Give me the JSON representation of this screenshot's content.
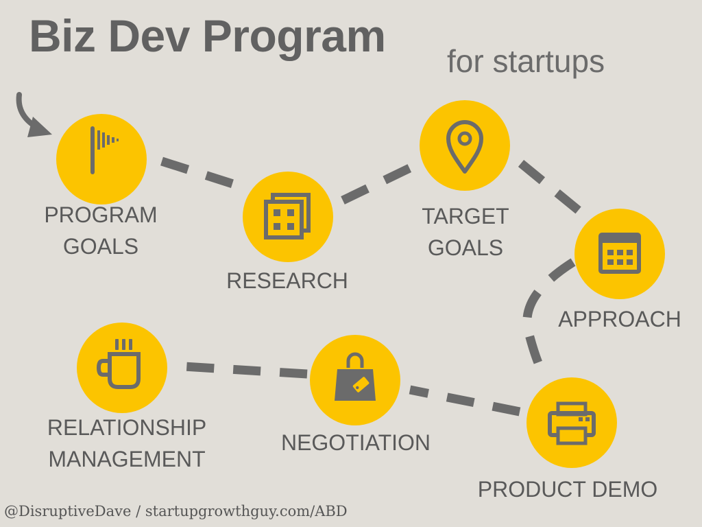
{
  "header": {
    "title": "Biz Dev Program",
    "subtitle": "for startups"
  },
  "steps": [
    {
      "label_lines": [
        "PROGRAM",
        "GOALS"
      ],
      "icon": "flag-icon"
    },
    {
      "label_lines": [
        "RESEARCH"
      ],
      "icon": "grid-squares-icon"
    },
    {
      "label_lines": [
        "TARGET",
        "GOALS"
      ],
      "icon": "map-pin-icon"
    },
    {
      "label_lines": [
        "APPROACH"
      ],
      "icon": "calendar-icon"
    },
    {
      "label_lines": [
        "PRODUCT DEMO"
      ],
      "icon": "printer-icon"
    },
    {
      "label_lines": [
        "NEGOTIATION"
      ],
      "icon": "shopping-bag-icon"
    },
    {
      "label_lines": [
        "RELATIONSHIP",
        "MANAGEMENT"
      ],
      "icon": "coffee-mug-icon"
    }
  ],
  "footer": {
    "credit": "@DisruptiveDave / startupgrowthguy.com/ABD"
  },
  "colors": {
    "background": "#e1ded8",
    "circle": "#fcc400",
    "icon": "#6b6b6b",
    "dash": "#6b6b6b",
    "text": "#595959"
  }
}
